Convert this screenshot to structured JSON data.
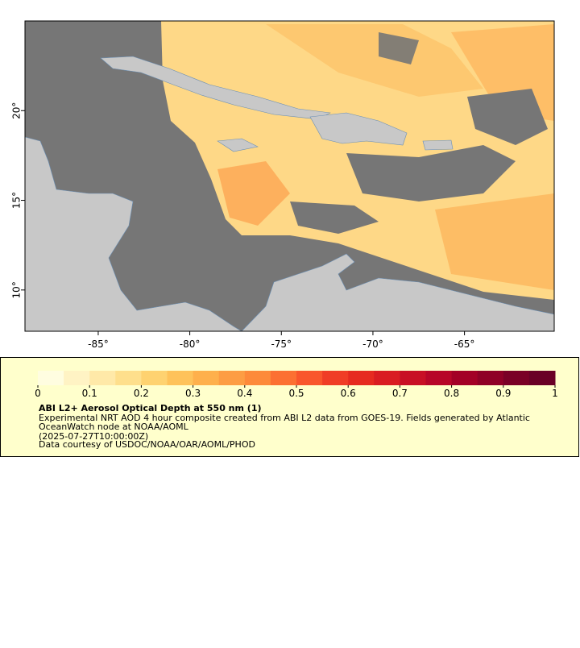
{
  "map": {
    "xlim": [
      -89,
      -60.1
    ],
    "ylim": [
      7.7,
      25
    ],
    "xticks": [
      {
        "value": -85,
        "label": "-85°"
      },
      {
        "value": -80,
        "label": "-80°"
      },
      {
        "value": -75,
        "label": "-75°"
      },
      {
        "value": -70,
        "label": "-70°"
      },
      {
        "value": -65,
        "label": "-65°"
      }
    ],
    "yticks": [
      {
        "value": 10,
        "label": "10°"
      },
      {
        "value": 15,
        "label": "15°"
      },
      {
        "value": 20,
        "label": "20°"
      }
    ],
    "ocean_color": "#767676",
    "land_color": "#c8c8c8"
  },
  "colorbar": {
    "lim": [
      0,
      1
    ],
    "ticks": [
      0,
      0.1,
      0.2,
      0.3,
      0.4,
      0.5,
      0.6,
      0.7,
      0.8,
      0.9,
      1
    ],
    "colors": [
      "#fffde0",
      "#fff3c4",
      "#ffe9a8",
      "#fedf8c",
      "#fed270",
      "#fec25a",
      "#feb04c",
      "#fd9d43",
      "#fd8a3a",
      "#fc7032",
      "#f9562c",
      "#f03d26",
      "#e62a20",
      "#d91c22",
      "#c80f25",
      "#b70628",
      "#a30026",
      "#8f0026",
      "#7a0026",
      "#6a0026"
    ]
  },
  "legend": {
    "title": "ABI L2+ Aerosol Optical Depth at 550 nm (1)",
    "lines": [
      "Experimental NRT AOD 4 hour composite created from ABI L2 data from GOES-19. Fields generated by Atlantic",
      "OceanWatch node at NOAA/AOML",
      "(2025-07-27T10:00:00Z)",
      "Data courtesy of USDOC/NOAA/OAR/AOML/PHOD"
    ]
  }
}
